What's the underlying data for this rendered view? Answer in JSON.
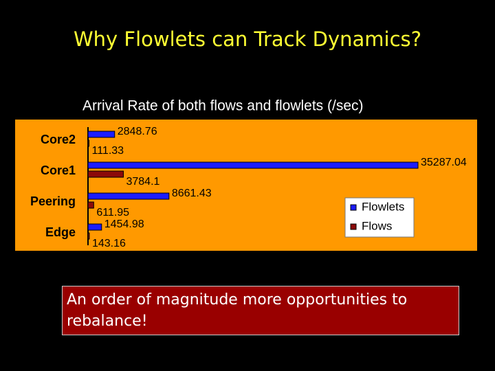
{
  "title": "Why Flowlets can Track Dynamics?",
  "chart_data": {
    "type": "bar",
    "orientation": "horizontal",
    "title": "Arrival Rate of both flows and flowlets  (/sec)",
    "categories": [
      "Core2",
      "Core1",
      "Peering",
      "Edge"
    ],
    "series": [
      {
        "name": "Flowlets",
        "color": "#1c1cff",
        "values": [
          2848.76,
          35287.04,
          8661.43,
          1454.98
        ]
      },
      {
        "name": "Flows",
        "color": "#8b0a0a",
        "values": [
          111.33,
          3784.1,
          611.95,
          143.16
        ]
      }
    ],
    "legend": "lower-right"
  },
  "callout": "An order of magnitude more opportunities to rebalance!"
}
